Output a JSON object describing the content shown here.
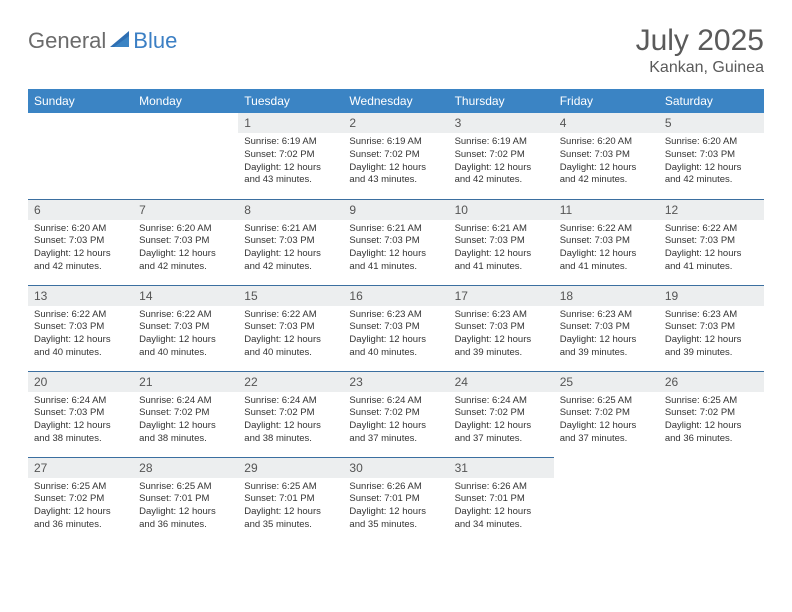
{
  "brand": {
    "part1": "General",
    "part2": "Blue"
  },
  "title": "July 2025",
  "location": "Kankan, Guinea",
  "colors": {
    "header_bg": "#3b84c4",
    "header_text": "#ffffff",
    "daynum_bg": "#eceeef",
    "row_border": "#3b6fa0",
    "brand_grey": "#6b6b6b",
    "brand_blue": "#3b7fc4"
  },
  "weekdays": [
    "Sunday",
    "Monday",
    "Tuesday",
    "Wednesday",
    "Thursday",
    "Friday",
    "Saturday"
  ],
  "first_weekday_index": 2,
  "days": [
    {
      "n": 1,
      "sunrise": "6:19 AM",
      "sunset": "7:02 PM",
      "daylight": "12 hours and 43 minutes."
    },
    {
      "n": 2,
      "sunrise": "6:19 AM",
      "sunset": "7:02 PM",
      "daylight": "12 hours and 43 minutes."
    },
    {
      "n": 3,
      "sunrise": "6:19 AM",
      "sunset": "7:02 PM",
      "daylight": "12 hours and 42 minutes."
    },
    {
      "n": 4,
      "sunrise": "6:20 AM",
      "sunset": "7:03 PM",
      "daylight": "12 hours and 42 minutes."
    },
    {
      "n": 5,
      "sunrise": "6:20 AM",
      "sunset": "7:03 PM",
      "daylight": "12 hours and 42 minutes."
    },
    {
      "n": 6,
      "sunrise": "6:20 AM",
      "sunset": "7:03 PM",
      "daylight": "12 hours and 42 minutes."
    },
    {
      "n": 7,
      "sunrise": "6:20 AM",
      "sunset": "7:03 PM",
      "daylight": "12 hours and 42 minutes."
    },
    {
      "n": 8,
      "sunrise": "6:21 AM",
      "sunset": "7:03 PM",
      "daylight": "12 hours and 42 minutes."
    },
    {
      "n": 9,
      "sunrise": "6:21 AM",
      "sunset": "7:03 PM",
      "daylight": "12 hours and 41 minutes."
    },
    {
      "n": 10,
      "sunrise": "6:21 AM",
      "sunset": "7:03 PM",
      "daylight": "12 hours and 41 minutes."
    },
    {
      "n": 11,
      "sunrise": "6:22 AM",
      "sunset": "7:03 PM",
      "daylight": "12 hours and 41 minutes."
    },
    {
      "n": 12,
      "sunrise": "6:22 AM",
      "sunset": "7:03 PM",
      "daylight": "12 hours and 41 minutes."
    },
    {
      "n": 13,
      "sunrise": "6:22 AM",
      "sunset": "7:03 PM",
      "daylight": "12 hours and 40 minutes."
    },
    {
      "n": 14,
      "sunrise": "6:22 AM",
      "sunset": "7:03 PM",
      "daylight": "12 hours and 40 minutes."
    },
    {
      "n": 15,
      "sunrise": "6:22 AM",
      "sunset": "7:03 PM",
      "daylight": "12 hours and 40 minutes."
    },
    {
      "n": 16,
      "sunrise": "6:23 AM",
      "sunset": "7:03 PM",
      "daylight": "12 hours and 40 minutes."
    },
    {
      "n": 17,
      "sunrise": "6:23 AM",
      "sunset": "7:03 PM",
      "daylight": "12 hours and 39 minutes."
    },
    {
      "n": 18,
      "sunrise": "6:23 AM",
      "sunset": "7:03 PM",
      "daylight": "12 hours and 39 minutes."
    },
    {
      "n": 19,
      "sunrise": "6:23 AM",
      "sunset": "7:03 PM",
      "daylight": "12 hours and 39 minutes."
    },
    {
      "n": 20,
      "sunrise": "6:24 AM",
      "sunset": "7:03 PM",
      "daylight": "12 hours and 38 minutes."
    },
    {
      "n": 21,
      "sunrise": "6:24 AM",
      "sunset": "7:02 PM",
      "daylight": "12 hours and 38 minutes."
    },
    {
      "n": 22,
      "sunrise": "6:24 AM",
      "sunset": "7:02 PM",
      "daylight": "12 hours and 38 minutes."
    },
    {
      "n": 23,
      "sunrise": "6:24 AM",
      "sunset": "7:02 PM",
      "daylight": "12 hours and 37 minutes."
    },
    {
      "n": 24,
      "sunrise": "6:24 AM",
      "sunset": "7:02 PM",
      "daylight": "12 hours and 37 minutes."
    },
    {
      "n": 25,
      "sunrise": "6:25 AM",
      "sunset": "7:02 PM",
      "daylight": "12 hours and 37 minutes."
    },
    {
      "n": 26,
      "sunrise": "6:25 AM",
      "sunset": "7:02 PM",
      "daylight": "12 hours and 36 minutes."
    },
    {
      "n": 27,
      "sunrise": "6:25 AM",
      "sunset": "7:02 PM",
      "daylight": "12 hours and 36 minutes."
    },
    {
      "n": 28,
      "sunrise": "6:25 AM",
      "sunset": "7:01 PM",
      "daylight": "12 hours and 36 minutes."
    },
    {
      "n": 29,
      "sunrise": "6:25 AM",
      "sunset": "7:01 PM",
      "daylight": "12 hours and 35 minutes."
    },
    {
      "n": 30,
      "sunrise": "6:26 AM",
      "sunset": "7:01 PM",
      "daylight": "12 hours and 35 minutes."
    },
    {
      "n": 31,
      "sunrise": "6:26 AM",
      "sunset": "7:01 PM",
      "daylight": "12 hours and 34 minutes."
    }
  ],
  "labels": {
    "sunrise": "Sunrise:",
    "sunset": "Sunset:",
    "daylight": "Daylight:"
  }
}
